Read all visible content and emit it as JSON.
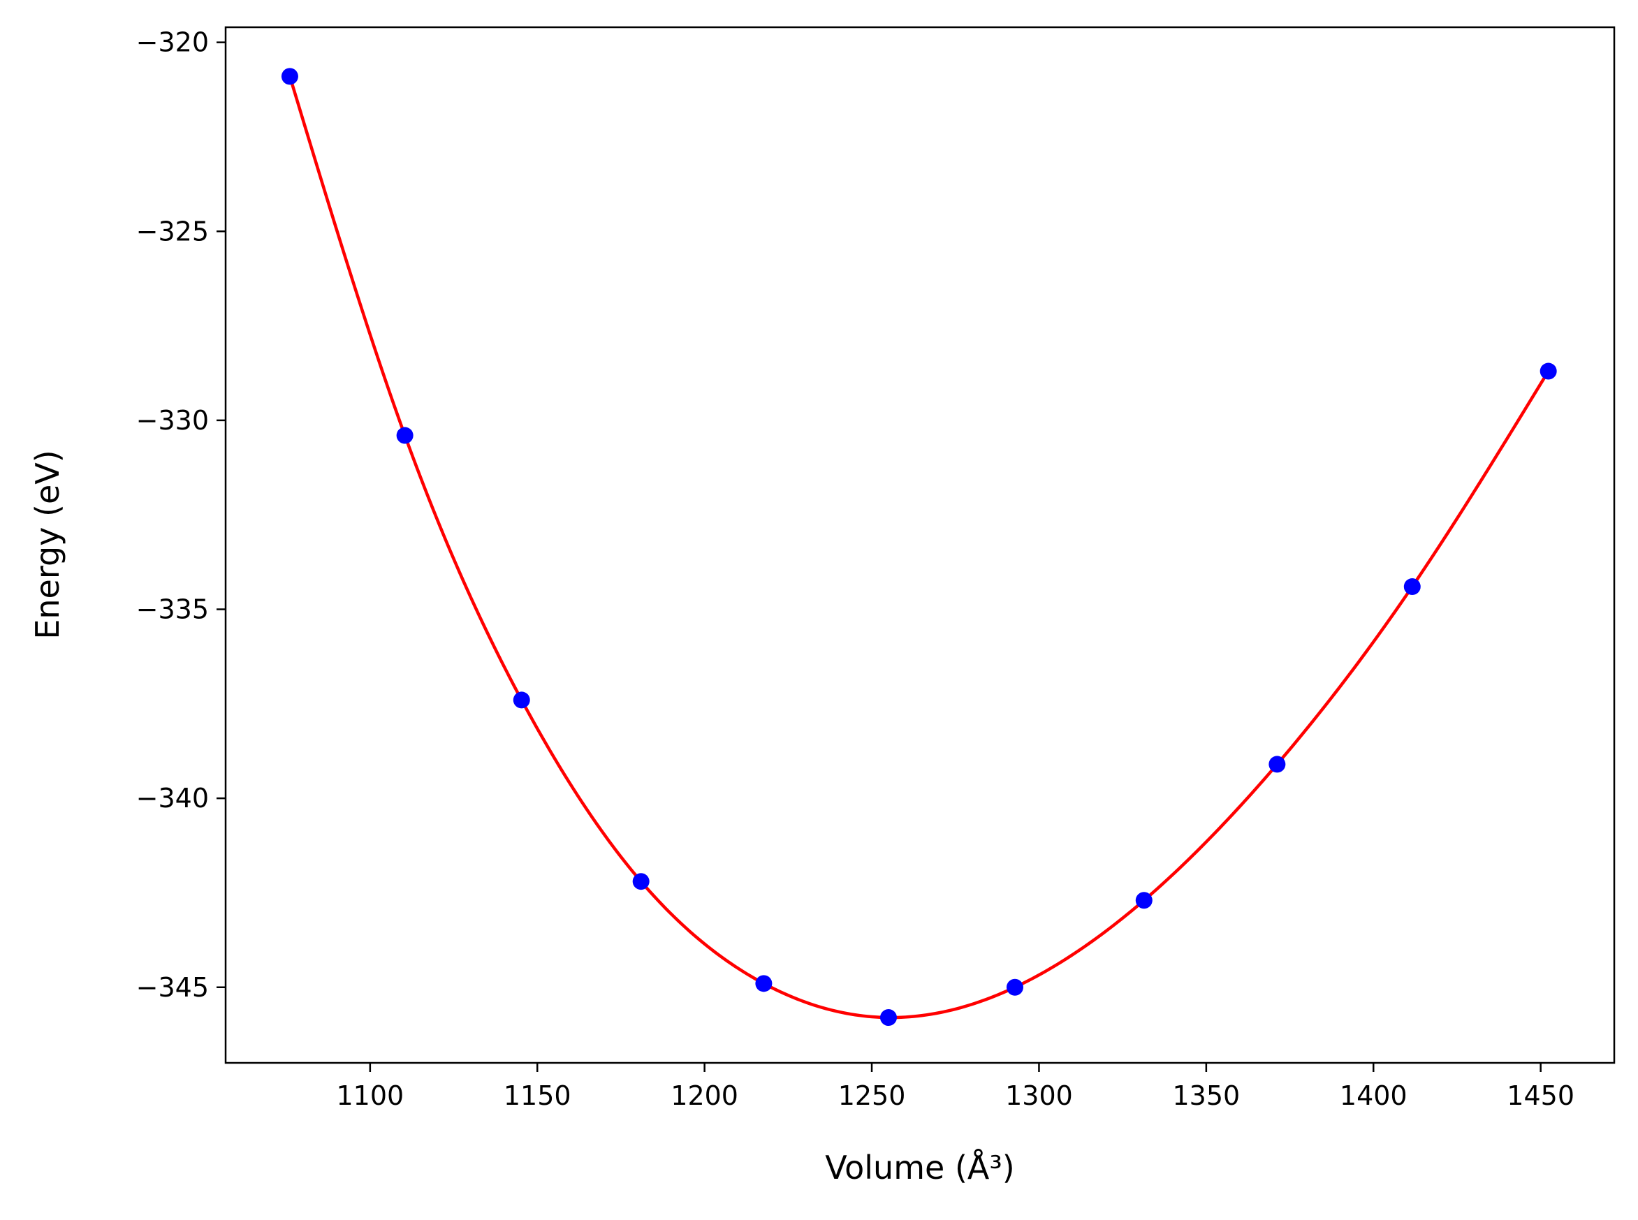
{
  "chart_data": {
    "type": "scatter",
    "xlabel": "Volume (Å³)",
    "ylabel": "Energy (eV)",
    "xlim": [
      1056.8,
      1472.0
    ],
    "ylim": [
      -347.0,
      -319.6
    ],
    "xticks": [
      1100,
      1150,
      1200,
      1250,
      1300,
      1350,
      1400,
      1450
    ],
    "xtick_labels": [
      "1100",
      "1150",
      "1200",
      "1250",
      "1300",
      "1350",
      "1400",
      "1450"
    ],
    "yticks": [
      -345,
      -340,
      -335,
      -330,
      -325,
      -320
    ],
    "ytick_labels": [
      "−345",
      "−340",
      "−335",
      "−330",
      "−325",
      "−320"
    ],
    "grid": false,
    "series": [
      {
        "kind": "points",
        "color": "#0000ff",
        "x": [
          1076.0,
          1110.4,
          1145.3,
          1181.0,
          1217.7,
          1255.0,
          1292.8,
          1331.4,
          1371.2,
          1411.6,
          1452.3
        ],
        "y": [
          -320.9,
          -330.4,
          -337.4,
          -342.2,
          -344.9,
          -345.8,
          -345.0,
          -342.7,
          -339.1,
          -334.4,
          -328.7
        ]
      },
      {
        "kind": "fit-curve",
        "color": "#ff0000"
      }
    ]
  }
}
